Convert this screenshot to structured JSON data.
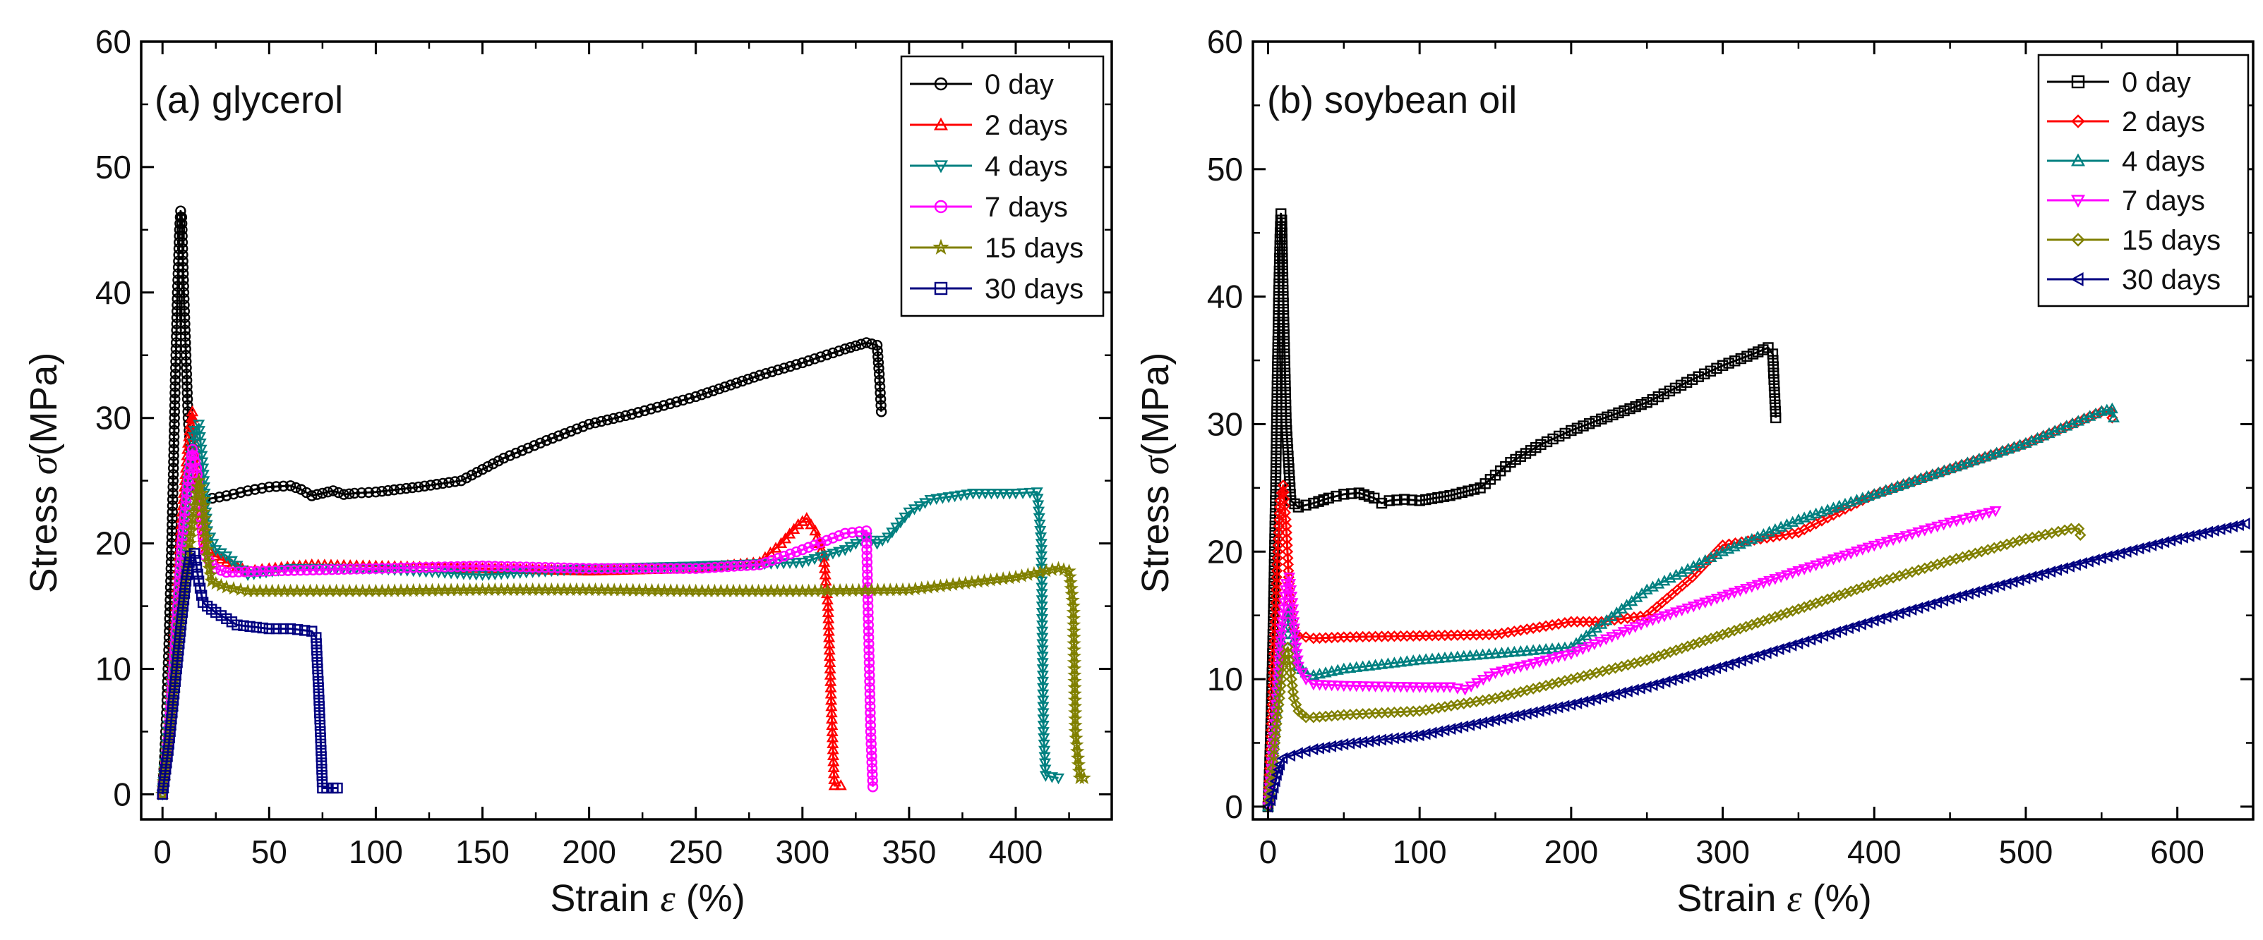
{
  "chart_data": [
    {
      "type": "line",
      "title": "(a) glycerol",
      "xlabel": "Strain",
      "xlabel_symbol": "ε",
      "xlabel_unit": "(%)",
      "ylabel": "Stress",
      "ylabel_symbol": "σ",
      "ylabel_unit": "(MPa)",
      "xlim": [
        -10,
        445
      ],
      "ylim": [
        -2,
        60
      ],
      "xticks": [
        0,
        50,
        100,
        150,
        200,
        250,
        300,
        350,
        400
      ],
      "yticks": [
        0,
        10,
        20,
        30,
        40,
        50,
        60
      ],
      "legend_position": "top-right",
      "series": [
        {
          "name": "0 day",
          "color": "#000000",
          "marker": "circle",
          "x": [
            0,
            1,
            2,
            3,
            4,
            5,
            6,
            7,
            8,
            8.5,
            9,
            10,
            12,
            15,
            20,
            30,
            40,
            50,
            60,
            65,
            70,
            75,
            80,
            85,
            90,
            100,
            120,
            140,
            160,
            180,
            200,
            220,
            250,
            280,
            300,
            320,
            330,
            335,
            336,
            337
          ],
          "y": [
            0,
            3,
            7,
            12,
            18,
            25,
            33,
            40,
            45,
            46.5,
            46,
            40,
            30,
            24,
            23.5,
            23.8,
            24.2,
            24.5,
            24.6,
            24.3,
            23.8,
            24,
            24.2,
            23.9,
            24,
            24.1,
            24.5,
            25,
            26.8,
            28.2,
            29.5,
            30.3,
            31.7,
            33.4,
            34.4,
            35.5,
            36,
            35.8,
            33.5,
            30.5
          ]
        },
        {
          "name": "2 days",
          "color": "#ff0000",
          "marker": "triangle-up",
          "x": [
            0,
            3,
            6,
            9,
            12,
            14,
            16,
            18,
            20,
            25,
            30,
            40,
            50,
            70,
            100,
            150,
            200,
            250,
            280,
            290,
            298,
            302,
            306,
            310,
            312,
            313,
            314,
            315,
            318
          ],
          "y": [
            0,
            6,
            14,
            22,
            28,
            30.5,
            27,
            22,
            19.5,
            19,
            18.5,
            17.8,
            18,
            18.3,
            18.2,
            18,
            17.8,
            18,
            18.5,
            20,
            21.5,
            22,
            21,
            19,
            15,
            10,
            5,
            0.7,
            0.7
          ]
        },
        {
          "name": "4 days",
          "color": "#008080",
          "marker": "triangle-down",
          "x": [
            0,
            4,
            8,
            12,
            15,
            17,
            19,
            21,
            25,
            30,
            40,
            60,
            100,
            150,
            200,
            250,
            300,
            320,
            330,
            335,
            340,
            350,
            360,
            380,
            400,
            410,
            412,
            413,
            414,
            420
          ],
          "y": [
            0,
            8,
            17,
            25,
            29,
            29.5,
            26,
            21,
            19.5,
            19,
            17.5,
            18,
            18,
            17.5,
            18,
            18.2,
            18.5,
            19.5,
            20.5,
            20,
            20.5,
            22.5,
            23.5,
            24,
            24,
            24.1,
            20,
            5,
            1.5,
            1.3
          ]
        },
        {
          "name": "7 days",
          "color": "#ff00ff",
          "marker": "circle",
          "x": [
            0,
            3,
            6,
            9,
            12,
            14,
            16,
            18,
            20,
            25,
            30,
            50,
            100,
            150,
            200,
            250,
            280,
            300,
            320,
            330,
            332,
            333
          ],
          "y": [
            0,
            5,
            12,
            20,
            25,
            27.5,
            26,
            22,
            19,
            18,
            17.7,
            17.8,
            18,
            18.2,
            18,
            18,
            18.3,
            19.5,
            20.8,
            21,
            5,
            0.6
          ]
        },
        {
          "name": "15 days",
          "color": "#808000",
          "marker": "star",
          "x": [
            0,
            4,
            8,
            12,
            15,
            17,
            19,
            21,
            23,
            25,
            30,
            40,
            60,
            100,
            150,
            200,
            250,
            300,
            350,
            400,
            420,
            425,
            427,
            428,
            430,
            432
          ],
          "y": [
            0,
            6,
            13,
            19,
            23,
            25,
            23.5,
            19,
            17,
            16.8,
            16.5,
            16.2,
            16.2,
            16.2,
            16.3,
            16.3,
            16.2,
            16.2,
            16.3,
            17.3,
            18,
            17.8,
            15,
            5,
            1.3,
            1.3
          ]
        },
        {
          "name": "30 days",
          "color": "#000080",
          "marker": "square",
          "x": [
            0,
            3,
            6,
            9,
            11,
            13,
            15,
            17,
            19,
            21,
            25,
            35,
            50,
            60,
            70,
            72,
            73,
            74,
            75,
            77,
            80,
            82
          ],
          "y": [
            0,
            4,
            9,
            14,
            17,
            19,
            19.2,
            17,
            15.3,
            15,
            14.5,
            13.5,
            13.2,
            13.2,
            13,
            12.5,
            9,
            5,
            0.5,
            0.5,
            0.5,
            0.5
          ]
        }
      ]
    },
    {
      "type": "line",
      "title": "(b) soybean oil",
      "xlabel": "Strain",
      "xlabel_symbol": "ε",
      "xlabel_unit": "(%)",
      "ylabel": "Stress",
      "ylabel_symbol": "σ",
      "ylabel_unit": "(MPa)",
      "xlim": [
        -10,
        650
      ],
      "ylim": [
        -1,
        60
      ],
      "xticks": [
        0,
        100,
        200,
        300,
        400,
        500,
        600
      ],
      "yticks": [
        0,
        10,
        20,
        30,
        40,
        50,
        60
      ],
      "legend_position": "top-right",
      "series": [
        {
          "name": "0 day",
          "color": "#000000",
          "marker": "square",
          "x": [
            0,
            1,
            2,
            3,
            4,
            5,
            6,
            7,
            8,
            8.5,
            9,
            10,
            12,
            15,
            20,
            30,
            40,
            50,
            60,
            70,
            75,
            80,
            90,
            100,
            120,
            140,
            160,
            180,
            200,
            220,
            250,
            280,
            300,
            320,
            330,
            333,
            334,
            335
          ],
          "y": [
            0,
            3,
            7,
            12,
            18,
            25,
            33,
            40,
            45,
            46.5,
            46,
            40,
            30,
            24,
            23.5,
            23.8,
            24.2,
            24.5,
            24.6,
            24.2,
            23.8,
            24,
            24.1,
            24,
            24.4,
            25,
            27,
            28.4,
            29.5,
            30.4,
            31.7,
            33.5,
            34.6,
            35.5,
            36,
            35.5,
            33,
            30.5
          ]
        },
        {
          "name": "2 days",
          "color": "#ff0000",
          "marker": "diamond",
          "x": [
            0,
            2,
            4,
            6,
            8,
            10,
            12,
            14,
            16,
            18,
            20,
            30,
            50,
            100,
            150,
            200,
            220,
            250,
            280,
            300,
            350,
            400,
            450,
            500,
            550,
            556,
            557
          ],
          "y": [
            0,
            5,
            12,
            19,
            24,
            25.2,
            22,
            17,
            14.5,
            13.6,
            13.4,
            13.2,
            13.3,
            13.4,
            13.5,
            14.5,
            14.5,
            15,
            18,
            20.5,
            21.5,
            24.5,
            26.5,
            28.5,
            31,
            31,
            30.5
          ]
        },
        {
          "name": "4 days",
          "color": "#008080",
          "marker": "triangle-up",
          "x": [
            0,
            3,
            6,
            9,
            12,
            14,
            16,
            18,
            20,
            25,
            30,
            50,
            100,
            150,
            200,
            250,
            300,
            350,
            400,
            450,
            500,
            550,
            557,
            558
          ],
          "y": [
            0,
            4,
            9,
            13,
            15,
            15.5,
            14,
            12,
            11,
            10.5,
            10.3,
            10.8,
            11.5,
            12,
            12.5,
            17,
            20,
            22.5,
            24.5,
            26.5,
            28.5,
            31,
            31.2,
            30.5
          ]
        },
        {
          "name": "7 days",
          "color": "#ff00ff",
          "marker": "triangle-down",
          "x": [
            0,
            3,
            6,
            9,
            12,
            14,
            16,
            18,
            20,
            25,
            30,
            50,
            100,
            120,
            130,
            150,
            200,
            250,
            300,
            350,
            400,
            450,
            480
          ],
          "y": [
            0,
            4,
            9,
            14,
            17.5,
            18,
            16,
            13,
            11,
            10,
            9.6,
            9.5,
            9.4,
            9.4,
            9.2,
            10.5,
            12,
            14.5,
            16.5,
            18.5,
            20.5,
            22.3,
            23.2
          ]
        },
        {
          "name": "15 days",
          "color": "#808000",
          "marker": "diamond",
          "x": [
            0,
            3,
            6,
            9,
            11,
            13,
            15,
            17,
            20,
            25,
            30,
            50,
            100,
            150,
            200,
            250,
            300,
            350,
            400,
            450,
            500,
            530,
            535,
            536
          ],
          "y": [
            0,
            3,
            7,
            10,
            12,
            12.5,
            10.5,
            8.5,
            7.5,
            7,
            7,
            7.2,
            7.5,
            8.5,
            10,
            11.5,
            13.5,
            15.5,
            17.5,
            19.3,
            21,
            21.8,
            21.8,
            21.3
          ]
        },
        {
          "name": "30 days",
          "color": "#000080",
          "marker": "triangle-left",
          "x": [
            0,
            2,
            4,
            6,
            8,
            10,
            15,
            20,
            30,
            50,
            100,
            150,
            200,
            250,
            300,
            350,
            400,
            450,
            500,
            550,
            600,
            645
          ],
          "y": [
            0,
            0.5,
            1.5,
            2.5,
            3.3,
            3.8,
            4,
            4.2,
            4.5,
            4.9,
            5.6,
            6.8,
            8,
            9.4,
            11,
            12.8,
            14.6,
            16.3,
            17.9,
            19.5,
            21,
            22.2
          ]
        }
      ]
    }
  ]
}
